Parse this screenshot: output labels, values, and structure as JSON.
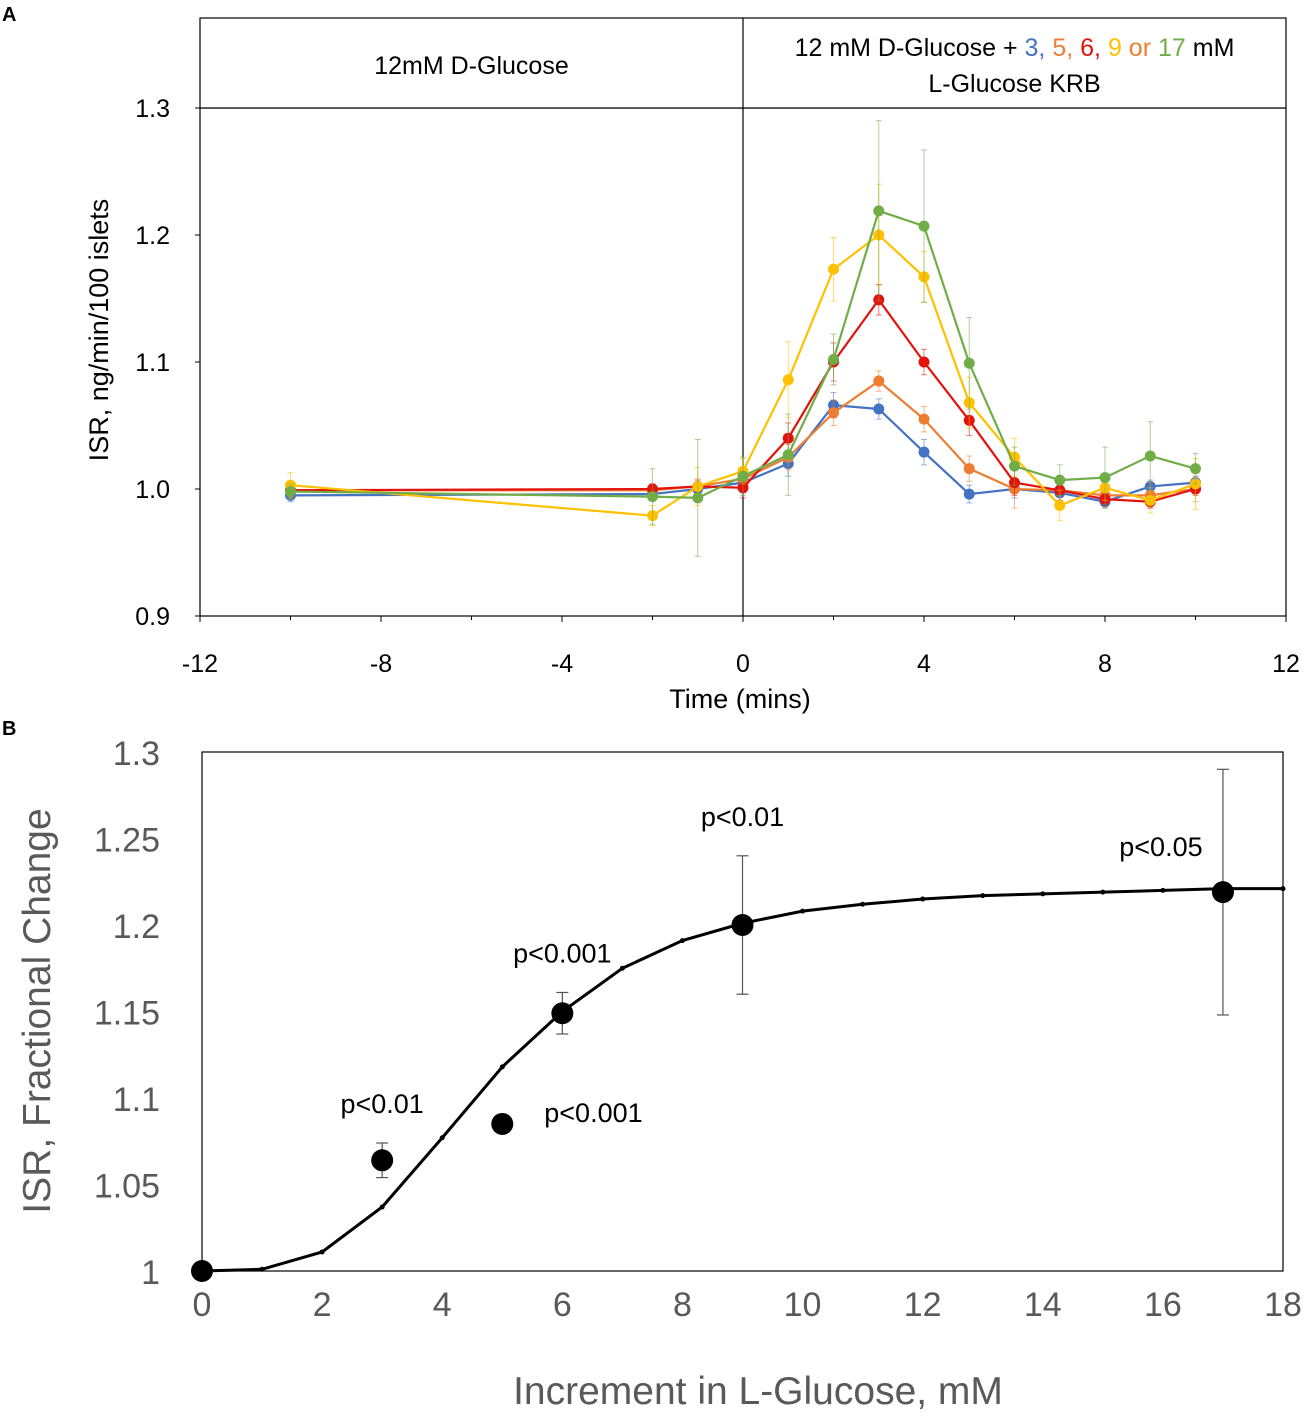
{
  "chart_data": [
    {
      "panel": "A",
      "type": "line",
      "xlabel": "Time (mins)",
      "ylabel": "ISR, ng/min/100 islets",
      "xlim": [
        -12,
        12
      ],
      "ylim": [
        0.9,
        1.3
      ],
      "xticks": [
        "-12",
        "-8",
        "-4",
        "0",
        "4",
        "8",
        "12"
      ],
      "yticks": [
        "0.9",
        "1.0",
        "1.1",
        "1.2",
        "1.3"
      ],
      "header": {
        "left": "12mM D-Glucose",
        "right_prefix": "12 mM D-Glucose + ",
        "right_parts": [
          {
            "text": "3",
            "color": "#4472c4"
          },
          {
            "text": ", ",
            "color": "#4472c4"
          },
          {
            "text": "5",
            "color": "#ed7d31"
          },
          {
            "text": ", ",
            "color": "#ed7d31"
          },
          {
            "text": "6",
            "color": "#e3120b"
          },
          {
            "text": ", ",
            "color": "#e3120b"
          },
          {
            "text": "9",
            "color": "#ffc000"
          },
          {
            "text": " or ",
            "color": "#ed7d31"
          },
          {
            "text": "17",
            "color": "#70ad47"
          }
        ],
        "right_suffix": " mM",
        "right_line2": "L-Glucose KRB"
      },
      "series": [
        {
          "name": "3 mM",
          "color": "#4472c4",
          "x": [
            -10,
            -2,
            -1,
            0,
            1,
            2,
            3,
            4,
            5,
            6,
            7,
            8,
            9,
            10
          ],
          "y": [
            0.995,
            0.996,
            1.0,
            1.005,
            1.02,
            1.066,
            1.063,
            1.029,
            0.996,
            1.0,
            0.997,
            0.99,
            1.002,
            1.005
          ],
          "err": [
            0.005,
            0.005,
            0.005,
            0.008,
            0.01,
            0.01,
            0.008,
            0.01,
            0.007,
            0.007,
            0.006,
            0.005,
            0.005,
            0.005
          ]
        },
        {
          "name": "5 mM",
          "color": "#ed7d31",
          "x": [
            -10,
            -2,
            -1,
            0,
            1,
            2,
            3,
            4,
            5,
            6,
            7,
            8,
            9,
            10
          ],
          "y": [
            0.999,
            0.999,
            1.002,
            1.008,
            1.025,
            1.06,
            1.085,
            1.055,
            1.016,
            1.0,
            0.999,
            0.995,
            0.995,
            1.0
          ],
          "err": [
            0.005,
            0.005,
            0.006,
            0.008,
            0.01,
            0.01,
            0.008,
            0.01,
            0.01,
            0.015,
            0.01,
            0.01,
            0.01,
            0.01
          ]
        },
        {
          "name": "6 mM",
          "color": "#e3120b",
          "x": [
            -10,
            -2,
            -1,
            0,
            1,
            2,
            3,
            4,
            5,
            6,
            7,
            8,
            9,
            10
          ],
          "y": [
            0.999,
            1.0,
            1.002,
            1.001,
            1.04,
            1.1,
            1.149,
            1.1,
            1.054,
            1.005,
            0.999,
            0.992,
            0.99,
            1.0
          ],
          "err": [
            0.004,
            0.004,
            0.005,
            0.008,
            0.012,
            0.015,
            0.012,
            0.01,
            0.012,
            0.01,
            0.008,
            0.005,
            0.005,
            0.005
          ]
        },
        {
          "name": "9 mM",
          "color": "#ffc000",
          "x": [
            -10,
            -2,
            -1,
            0,
            1,
            2,
            3,
            4,
            5,
            6,
            7,
            8,
            9,
            10
          ],
          "y": [
            1.003,
            0.979,
            1.002,
            1.014,
            1.086,
            1.173,
            1.2,
            1.167,
            1.068,
            1.025,
            0.987,
            1.001,
            0.991,
            1.004
          ],
          "err": [
            0.01,
            0.008,
            0.015,
            0.01,
            0.03,
            0.025,
            0.04,
            0.02,
            0.02,
            0.015,
            0.012,
            0.01,
            0.01,
            0.02
          ]
        },
        {
          "name": "17 mM",
          "color": "#70ad47",
          "x": [
            -10,
            -2,
            -1,
            0,
            1,
            2,
            3,
            4,
            5,
            6,
            7,
            8,
            9,
            10
          ],
          "y": [
            0.998,
            0.994,
            0.993,
            1.01,
            1.027,
            1.102,
            1.219,
            1.207,
            1.099,
            1.018,
            1.007,
            1.009,
            1.026,
            1.016
          ],
          "err": [
            0.006,
            0.022,
            0.046,
            0.015,
            0.032,
            0.02,
            0.071,
            0.06,
            0.036,
            0.015,
            0.012,
            0.024,
            0.027,
            0.012
          ]
        }
      ]
    },
    {
      "panel": "B",
      "type": "scatter",
      "xlabel": "Increment in L-Glucose, mM",
      "ylabel": "ISR, Fractional Change",
      "xlim": [
        0,
        18
      ],
      "ylim": [
        1,
        1.3
      ],
      "xticks": [
        "0",
        "2",
        "4",
        "6",
        "8",
        "10",
        "12",
        "14",
        "16",
        "18"
      ],
      "yticks": [
        "1",
        "1.05",
        "1.1",
        "1.15",
        "1.2",
        "1.25",
        "1.3"
      ],
      "points": {
        "x": [
          0,
          3,
          5,
          6,
          9,
          17
        ],
        "y": [
          1.0,
          1.064,
          1.085,
          1.149,
          1.2,
          1.219
        ],
        "err": [
          0,
          0.01,
          0,
          0.012,
          0.04,
          0.071
        ]
      },
      "fit_curve": {
        "x": [
          0,
          1,
          2,
          3,
          4,
          5,
          6,
          7,
          8,
          9,
          10,
          11,
          12,
          13,
          14,
          15,
          16,
          17,
          18
        ],
        "y": [
          1.0,
          1.001,
          1.011,
          1.037,
          1.077,
          1.118,
          1.15,
          1.175,
          1.191,
          1.201,
          1.208,
          1.212,
          1.215,
          1.217,
          1.218,
          1.219,
          1.22,
          1.221,
          1.221
        ]
      },
      "annotations": [
        {
          "text": "p<0.01",
          "x": 3,
          "y": 1.064,
          "placement": "above"
        },
        {
          "text": "p<0.001",
          "x": 5,
          "y": 1.085,
          "placement": "right"
        },
        {
          "text": "p<0.001",
          "x": 6,
          "y": 1.149,
          "placement": "above"
        },
        {
          "text": "p<0.01",
          "x": 9,
          "y": 1.2,
          "placement": "above"
        },
        {
          "text": "p<0.05",
          "x": 17,
          "y": 1.219,
          "placement": "above"
        }
      ]
    }
  ],
  "labels": {
    "panel_a": "A",
    "panel_b": "B"
  }
}
